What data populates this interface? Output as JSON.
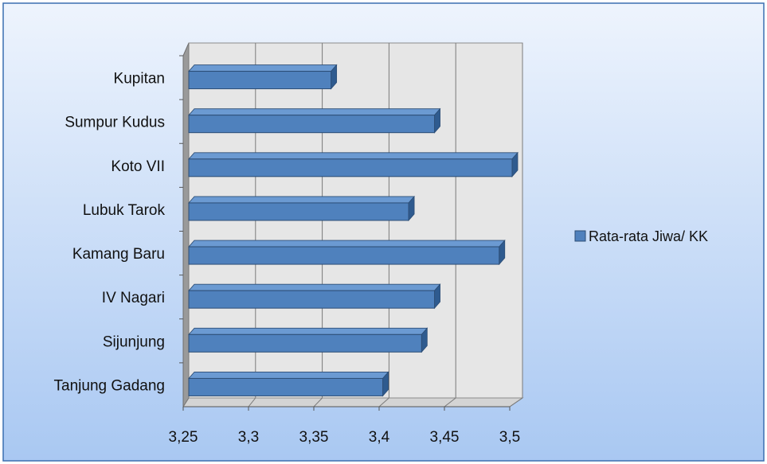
{
  "chart_data": {
    "type": "bar",
    "orientation": "horizontal",
    "style": "3d",
    "categories": [
      "Kupitan",
      "Sumpur Kudus",
      "Koto VII",
      "Lubuk Tarok",
      "Kamang Baru",
      "IV Nagari",
      "Sijunjung",
      "Tanjung Gadang"
    ],
    "series": [
      {
        "name": "Rata-rata Jiwa/ KK",
        "values": [
          3.36,
          3.44,
          3.5,
          3.42,
          3.49,
          3.44,
          3.43,
          3.4
        ],
        "color": "#4f81bd"
      }
    ],
    "xlim": [
      3.25,
      3.5
    ],
    "xticks": [
      3.25,
      3.3,
      3.35,
      3.4,
      3.45,
      3.5
    ],
    "xtick_labels": [
      "3,25",
      "3,3",
      "3,35",
      "3,4",
      "3,45",
      "3,5"
    ],
    "grid": true,
    "legend": "right"
  },
  "colors": {
    "background_top": "#eef4fd",
    "background_bottom": "#a9c8f2",
    "plot_wall": "#e6e6e6",
    "side_wall": "#9a9a9a",
    "bar": "#4f81bd",
    "bar_top": "#6b9ad2",
    "bar_side": "#2f5b8f"
  }
}
